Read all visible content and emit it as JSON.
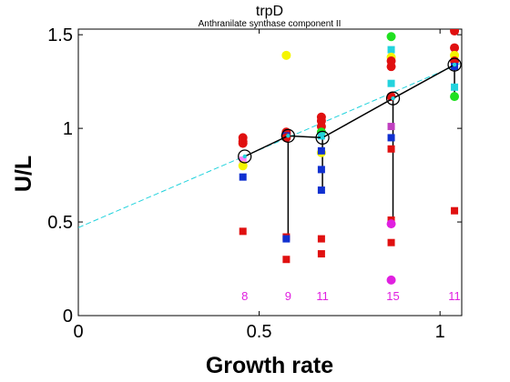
{
  "chart_data": {
    "type": "scatter",
    "title": "trpD",
    "subtitle": "Anthranilate synthase component II",
    "xlabel": "Growth rate",
    "ylabel": "U/L",
    "xlim": [
      0,
      1.06
    ],
    "ylim": [
      0,
      1.53
    ],
    "xticks": [
      "0",
      "0.5",
      "1"
    ],
    "yticks": [
      "0",
      "0.5",
      "1",
      "1.5"
    ],
    "grid": false,
    "count_color": "#e020e0",
    "fit_color": "#22d3dd",
    "fit_line": {
      "intercept": 0.47,
      "slope": 0.83,
      "style": "dashed"
    },
    "means": {
      "x": [
        0.46,
        0.58,
        0.675,
        0.87,
        1.04
      ],
      "y": [
        0.85,
        0.96,
        0.95,
        1.16,
        1.34
      ]
    },
    "range_bars": [
      {
        "x": 0.58,
        "low": 0.42,
        "high": 0.96
      },
      {
        "x": 0.675,
        "low": 0.67,
        "high": 0.95
      },
      {
        "x": 0.87,
        "low": 0.5,
        "high": 1.16
      },
      {
        "x": 1.04,
        "low": 1.18,
        "high": 1.34
      }
    ],
    "counts": [
      {
        "x": 0.46,
        "label": "8"
      },
      {
        "x": 0.58,
        "label": "9"
      },
      {
        "x": 0.675,
        "label": "11"
      },
      {
        "x": 0.87,
        "label": "15"
      },
      {
        "x": 1.04,
        "label": "11"
      }
    ],
    "points": [
      {
        "x": 0.455,
        "y": 0.95,
        "shape": "circle",
        "color": "#e01010"
      },
      {
        "x": 0.455,
        "y": 0.93,
        "shape": "circle",
        "color": "#e01010"
      },
      {
        "x": 0.455,
        "y": 0.92,
        "shape": "circle",
        "color": "#e01010"
      },
      {
        "x": 0.455,
        "y": 0.83,
        "shape": "square",
        "color": "#ff80ff"
      },
      {
        "x": 0.455,
        "y": 0.8,
        "shape": "circle",
        "color": "#f5f500"
      },
      {
        "x": 0.455,
        "y": 0.74,
        "shape": "square",
        "color": "#1030d0"
      },
      {
        "x": 0.455,
        "y": 0.45,
        "shape": "square",
        "color": "#e01010"
      },
      {
        "x": 0.575,
        "y": 1.39,
        "shape": "circle",
        "color": "#f5f500"
      },
      {
        "x": 0.575,
        "y": 0.98,
        "shape": "circle",
        "color": "#e01010"
      },
      {
        "x": 0.575,
        "y": 0.97,
        "shape": "circle",
        "color": "#e01010"
      },
      {
        "x": 0.575,
        "y": 0.96,
        "shape": "square",
        "color": "#1030d0"
      },
      {
        "x": 0.575,
        "y": 0.95,
        "shape": "circle",
        "color": "#e01010"
      },
      {
        "x": 0.575,
        "y": 0.42,
        "shape": "square",
        "color": "#e01010"
      },
      {
        "x": 0.575,
        "y": 0.41,
        "shape": "square",
        "color": "#1030d0"
      },
      {
        "x": 0.575,
        "y": 0.3,
        "shape": "square",
        "color": "#e01010"
      },
      {
        "x": 0.672,
        "y": 1.06,
        "shape": "circle",
        "color": "#e01010"
      },
      {
        "x": 0.672,
        "y": 1.04,
        "shape": "circle",
        "color": "#e01010"
      },
      {
        "x": 0.672,
        "y": 1.01,
        "shape": "circle",
        "color": "#e01010"
      },
      {
        "x": 0.672,
        "y": 0.98,
        "shape": "circle",
        "color": "#20e020"
      },
      {
        "x": 0.672,
        "y": 0.96,
        "shape": "square",
        "color": "#22d3dd"
      },
      {
        "x": 0.672,
        "y": 0.87,
        "shape": "circle",
        "color": "#f5f500"
      },
      {
        "x": 0.672,
        "y": 0.88,
        "shape": "square",
        "color": "#1030d0"
      },
      {
        "x": 0.672,
        "y": 0.78,
        "shape": "square",
        "color": "#1030d0"
      },
      {
        "x": 0.672,
        "y": 0.67,
        "shape": "square",
        "color": "#1030d0"
      },
      {
        "x": 0.672,
        "y": 0.41,
        "shape": "square",
        "color": "#e01010"
      },
      {
        "x": 0.672,
        "y": 0.33,
        "shape": "square",
        "color": "#e01010"
      },
      {
        "x": 0.865,
        "y": 1.49,
        "shape": "circle",
        "color": "#20e020"
      },
      {
        "x": 0.865,
        "y": 1.42,
        "shape": "square",
        "color": "#22d3dd"
      },
      {
        "x": 0.865,
        "y": 1.38,
        "shape": "circle",
        "color": "#f5f500"
      },
      {
        "x": 0.865,
        "y": 1.36,
        "shape": "circle",
        "color": "#e01010"
      },
      {
        "x": 0.865,
        "y": 1.33,
        "shape": "circle",
        "color": "#e01010"
      },
      {
        "x": 0.865,
        "y": 1.24,
        "shape": "square",
        "color": "#22d3dd"
      },
      {
        "x": 0.865,
        "y": 1.17,
        "shape": "circle",
        "color": "#e01010"
      },
      {
        "x": 0.865,
        "y": 1.01,
        "shape": "square",
        "color": "#c040c0"
      },
      {
        "x": 0.865,
        "y": 0.95,
        "shape": "square",
        "color": "#1030d0"
      },
      {
        "x": 0.865,
        "y": 0.89,
        "shape": "square",
        "color": "#e01010"
      },
      {
        "x": 0.865,
        "y": 0.51,
        "shape": "square",
        "color": "#e01010"
      },
      {
        "x": 0.865,
        "y": 0.49,
        "shape": "circle",
        "color": "#e020e0"
      },
      {
        "x": 0.865,
        "y": 0.39,
        "shape": "square",
        "color": "#e01010"
      },
      {
        "x": 0.865,
        "y": 0.19,
        "shape": "circle",
        "color": "#e020e0"
      },
      {
        "x": 1.04,
        "y": 1.52,
        "shape": "circle",
        "color": "#e01010"
      },
      {
        "x": 1.04,
        "y": 1.43,
        "shape": "circle",
        "color": "#e01010"
      },
      {
        "x": 1.04,
        "y": 1.39,
        "shape": "circle",
        "color": "#f5f500"
      },
      {
        "x": 1.04,
        "y": 1.36,
        "shape": "circle",
        "color": "#e01010"
      },
      {
        "x": 1.04,
        "y": 1.33,
        "shape": "square",
        "color": "#1030d0"
      },
      {
        "x": 1.04,
        "y": 1.22,
        "shape": "square",
        "color": "#22d3dd"
      },
      {
        "x": 1.04,
        "y": 1.17,
        "shape": "circle",
        "color": "#20e020"
      },
      {
        "x": 1.04,
        "y": 0.56,
        "shape": "square",
        "color": "#e01010"
      }
    ]
  }
}
